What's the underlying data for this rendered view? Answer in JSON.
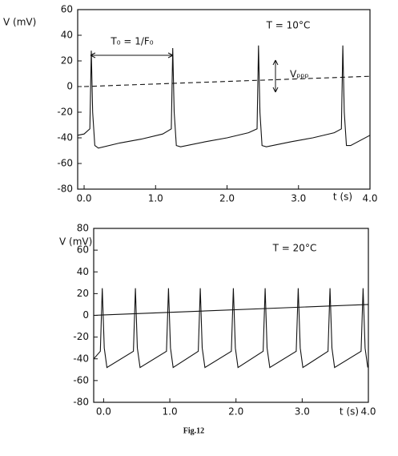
{
  "chart_data": [
    {
      "type": "line",
      "title": "T = 10°C",
      "x_label": "t (s)",
      "y_label": "V (mV)",
      "annotations": [
        "T₀ = 1/F₀",
        "Vₚₚₚ"
      ],
      "xlim": [
        -0.09,
        4.0
      ],
      "ylim": [
        -80,
        60
      ],
      "xticks": [
        {
          "value": 0,
          "label": "0.0"
        },
        {
          "value": 1,
          "label": "1.0"
        },
        {
          "value": 2,
          "label": "2.0"
        },
        {
          "value": 3,
          "label": "3.0"
        },
        {
          "value": 4,
          "label": "4.0"
        }
      ],
      "yticks": [
        -80,
        -60,
        -40,
        -20,
        0,
        20,
        40,
        60
      ],
      "series": [
        {
          "color": "#111",
          "dashed": false,
          "x": [
            -0.09,
            0.0,
            0.08,
            0.1,
            0.12,
            0.15,
            0.2,
            0.5,
            0.8,
            1.1,
            1.22,
            1.24,
            1.26,
            1.29,
            1.35,
            1.7,
            2.0,
            2.3,
            2.42,
            2.44,
            2.46,
            2.49,
            2.55,
            2.9,
            3.2,
            3.5,
            3.6,
            3.62,
            3.64,
            3.67,
            3.73,
            4.0
          ],
          "values": [
            -38,
            -37,
            -33,
            28,
            -20,
            -46,
            -48,
            -44,
            -41,
            -37,
            -33,
            30,
            -20,
            -46,
            -47,
            -43,
            -40,
            -36,
            -33,
            32,
            -20,
            -46,
            -47,
            -43,
            -40,
            -36,
            -33,
            32,
            -20,
            -46,
            -46,
            -38
          ]
        },
        {
          "color": "#111",
          "dashed": true,
          "x": [
            0.0,
            4.0
          ],
          "values": [
            0,
            8
          ]
        }
      ]
    },
    {
      "type": "line",
      "title": "T = 20°C",
      "x_label": "t (s)",
      "y_label": "V (mV)",
      "xlim": [
        -0.15,
        4.0
      ],
      "ylim": [
        -80,
        80
      ],
      "xticks": [
        {
          "value": 0,
          "label": "0.0"
        },
        {
          "value": 1,
          "label": "1.0"
        },
        {
          "value": 2,
          "label": "2.0"
        },
        {
          "value": 3,
          "label": "3.0"
        },
        {
          "value": 4,
          "label": "4.0"
        }
      ],
      "yticks": [
        -80,
        -60,
        -40,
        -20,
        0,
        20,
        40,
        60,
        80
      ],
      "series": [
        {
          "color": "#111",
          "dashed": false,
          "x": [
            -0.15,
            -0.05,
            -0.02,
            0.01,
            0.05,
            0.45,
            0.48,
            0.51,
            0.55,
            0.95,
            0.98,
            1.01,
            1.05,
            1.43,
            1.46,
            1.49,
            1.53,
            1.93,
            1.96,
            1.99,
            2.03,
            2.41,
            2.44,
            2.47,
            2.51,
            2.91,
            2.94,
            2.97,
            3.01,
            3.39,
            3.42,
            3.45,
            3.49,
            3.89,
            3.92,
            3.95,
            3.99
          ],
          "values": [
            -40,
            -33,
            25,
            -30,
            -48,
            -33,
            25,
            -30,
            -48,
            -33,
            25,
            -30,
            -48,
            -33,
            25,
            -30,
            -48,
            -33,
            25,
            -30,
            -48,
            -33,
            25,
            -30,
            -48,
            -33,
            25,
            -30,
            -48,
            -33,
            25,
            -30,
            -48,
            -33,
            25,
            -30,
            -48
          ]
        },
        {
          "color": "#111",
          "dashed": false,
          "x": [
            -0.15,
            4.0
          ],
          "values": [
            0,
            10
          ]
        }
      ]
    }
  ],
  "caption": "Fig.12"
}
